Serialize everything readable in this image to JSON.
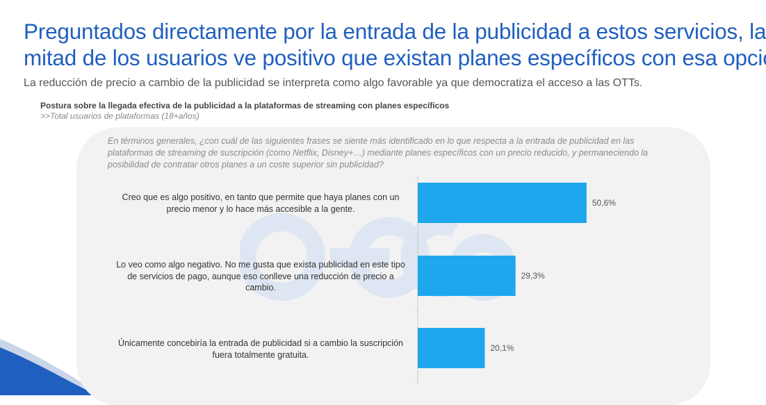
{
  "header": {
    "title_line1": "Preguntados directamente por la entrada de la publicidad a estos servicios, la",
    "title_line2": "mitad de los usuarios ve positivo que existan planes específicos con esa opción",
    "subtitle": "La reducción de precio a cambio de la publicidad se interpreta como algo favorable ya que democratiza el acceso a las OTTs."
  },
  "chart_data": {
    "type": "bar",
    "orientation": "horizontal",
    "title": "Postura sobre la llegada efectiva de la publicidad a la plataformas de streaming con planes específicos",
    "base": ">>Total usuarios de plataformas (18+años)",
    "question": "En términos generales, ¿con cuál de las siguientes frases se siente más identificado en lo que respecta a la entrada de publicidad en las plataformas de streaming de suscripción (como Netflix, Disney+…) mediante planes específicos con un precio reducido, y permaneciendo la posibilidad de contratar otros planes a un coste superior sin publicidad?",
    "categories": [
      "Creo que es algo positivo, en tanto que permite que haya planes con un precio menor y lo hace más accesible a la gente.",
      "Lo veo como algo negativo. No me gusta que exista publicidad en este tipo de servicios de pago, aunque eso conlleve una reducción de precio a cambio.",
      "Únicamente concebiría la entrada de publicidad si a cambio la suscripción fuera totalmente gratuita."
    ],
    "values": [
      50.6,
      29.3,
      20.1
    ],
    "value_labels": [
      "50,6%",
      "29,3%",
      "20,1%"
    ],
    "icons": [
      "thumbs-up-icon",
      "thumbs-down-icon",
      "free-cross-icon"
    ],
    "xlim": [
      0,
      100
    ],
    "bar_color": "#1ea7ec",
    "grid": false
  },
  "colors": {
    "title": "#1f5fbf",
    "panel": "#f2f2f2",
    "bar": "#1ea7ec"
  }
}
